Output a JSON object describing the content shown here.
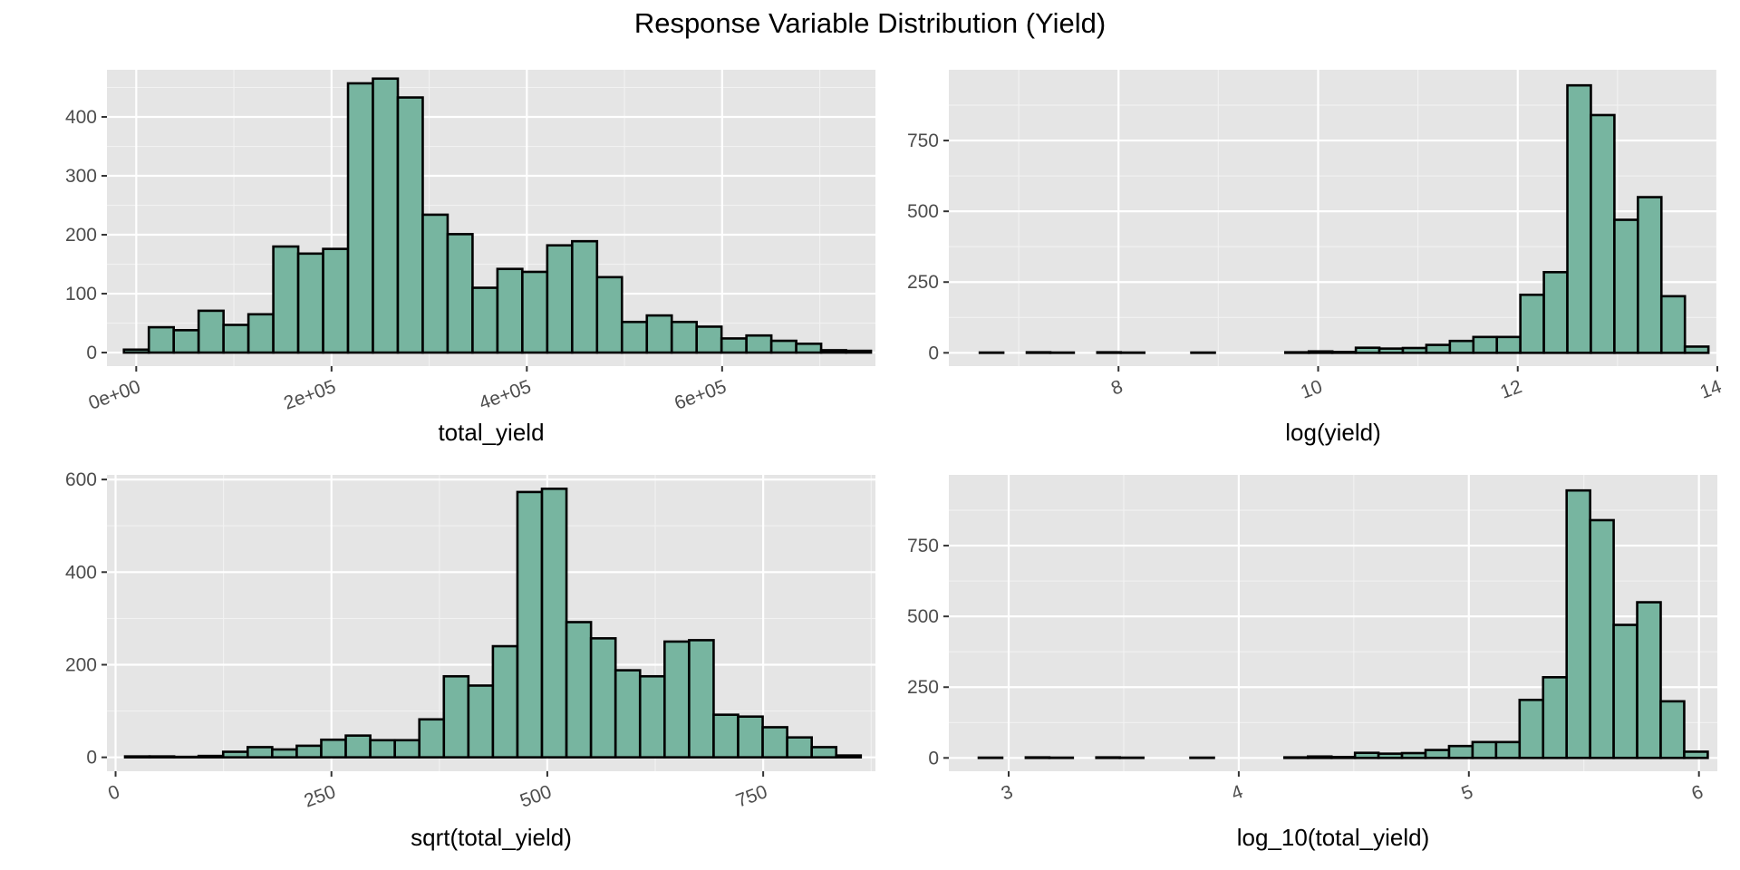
{
  "title": "Response Variable Distribution (Yield)",
  "colors": {
    "bar_fill": "#77b5a0",
    "bar_stroke": "#000000",
    "panel_bg": "#e5e5e5",
    "grid": "#ffffff"
  },
  "chart_data": [
    {
      "type": "bar",
      "xlabel": "total_yield",
      "ylabel": "",
      "xlim": [
        -30000,
        757000
      ],
      "ylim": [
        -23,
        480
      ],
      "x_ticks": [
        0,
        200000,
        400000,
        600000
      ],
      "x_tick_labels": [
        "0e+00",
        "2e+05",
        "4e+05",
        "6e+05"
      ],
      "x_tick_rotation": 20,
      "y_ticks": [
        0,
        100,
        200,
        300,
        400
      ],
      "y_tick_labels": [
        "0",
        "100",
        "200",
        "300",
        "400"
      ],
      "bin_start": -12600,
      "bin_width": 25500,
      "values": [
        5,
        43,
        38,
        71,
        47,
        65,
        180,
        168,
        176,
        457,
        465,
        433,
        234,
        201,
        110,
        142,
        137,
        182,
        189,
        128,
        52,
        63,
        52,
        44,
        24,
        29,
        20,
        15,
        4,
        3
      ]
    },
    {
      "type": "bar",
      "xlabel": "log(yield)",
      "ylabel": "",
      "xlim": [
        6.3,
        14.0
      ],
      "ylim": [
        -47,
        1000
      ],
      "x_ticks": [
        8,
        10,
        12,
        14
      ],
      "x_tick_labels": [
        "8",
        "10",
        "12",
        "14"
      ],
      "x_tick_rotation": 20,
      "y_ticks": [
        0,
        250,
        500,
        750
      ],
      "y_tick_labels": [
        "0",
        "250",
        "500",
        "750"
      ],
      "bin_start": 6.61,
      "bin_width": 0.2355,
      "values": [
        1,
        0,
        2,
        1,
        0,
        2,
        1,
        0,
        0,
        1,
        0,
        0,
        0,
        2,
        5,
        3,
        18,
        15,
        17,
        28,
        42,
        56,
        56,
        205,
        285,
        945,
        840,
        470,
        550,
        200,
        22
      ]
    },
    {
      "type": "bar",
      "xlabel": "sqrt(total_yield)",
      "ylabel": "",
      "xlim": [
        -10,
        880
      ],
      "ylim": [
        -30,
        610
      ],
      "x_ticks": [
        0,
        250,
        500,
        750
      ],
      "x_tick_labels": [
        "0",
        "250",
        "500",
        "750"
      ],
      "x_tick_rotation": 20,
      "y_ticks": [
        0,
        200,
        400,
        600
      ],
      "y_tick_labels": [
        "0",
        "200",
        "400",
        "600"
      ],
      "bin_start": 11,
      "bin_width": 28.4,
      "values": [
        2,
        2,
        1,
        3,
        12,
        22,
        17,
        25,
        38,
        47,
        37,
        37,
        82,
        175,
        155,
        240,
        573,
        580,
        292,
        257,
        188,
        175,
        250,
        253,
        92,
        88,
        65,
        43,
        22,
        4
      ]
    },
    {
      "type": "bar",
      "xlabel": "log_10(total_yield)",
      "ylabel": "",
      "xlim": [
        2.74,
        6.08
      ],
      "ylim": [
        -47,
        1000
      ],
      "x_ticks": [
        3,
        4,
        5,
        6
      ],
      "x_tick_labels": [
        "3",
        "4",
        "5",
        "6"
      ],
      "x_tick_rotation": 20,
      "y_ticks": [
        0,
        250,
        500,
        750
      ],
      "y_tick_labels": [
        "0",
        "250",
        "500",
        "750"
      ],
      "bin_start": 2.87,
      "bin_width": 0.1022,
      "values": [
        1,
        0,
        2,
        1,
        0,
        2,
        1,
        0,
        0,
        1,
        0,
        0,
        0,
        2,
        5,
        3,
        18,
        15,
        17,
        28,
        42,
        56,
        56,
        205,
        285,
        945,
        840,
        470,
        550,
        200,
        22
      ]
    }
  ]
}
